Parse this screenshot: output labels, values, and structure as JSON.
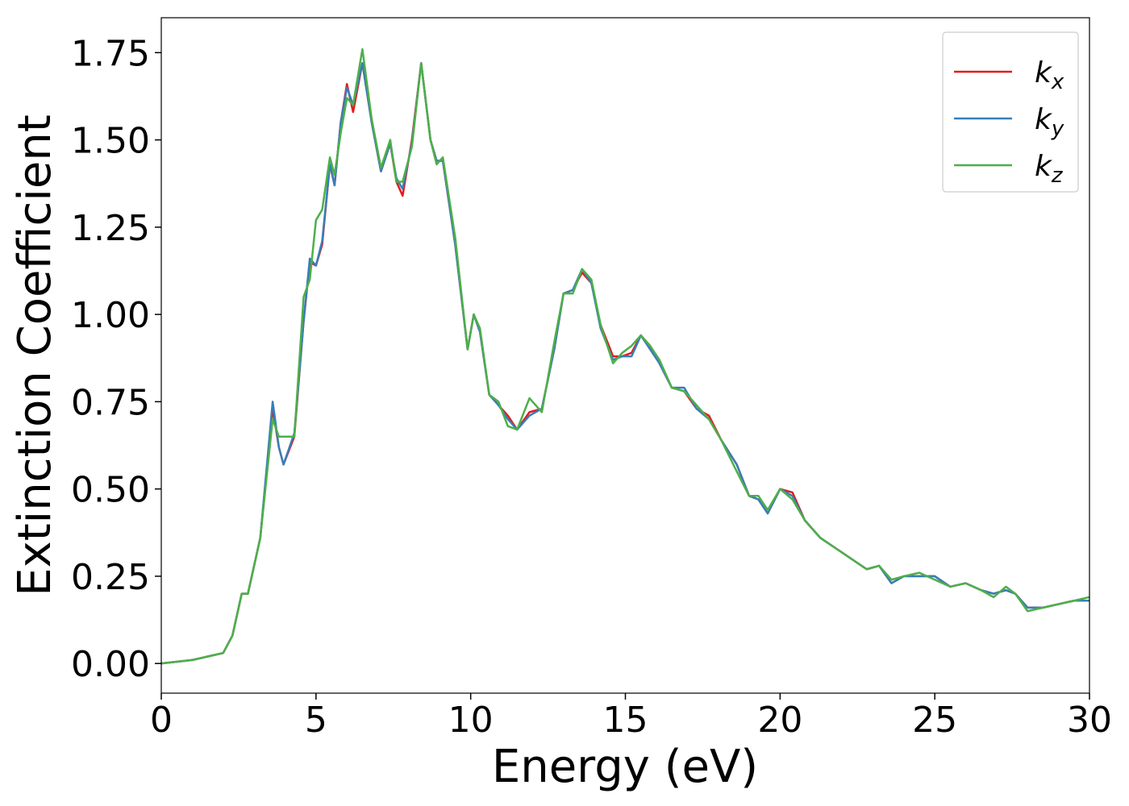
{
  "chart_data": {
    "type": "line",
    "xlabel": "Energy (eV)",
    "ylabel": "Extinction Coefficient",
    "xlim": [
      0,
      30
    ],
    "ylim": [
      -0.085,
      1.85
    ],
    "xticks": [
      0,
      5,
      10,
      15,
      20,
      25,
      30
    ],
    "yticks": [
      {
        "value": 0,
        "label": "0.00"
      },
      {
        "value": 0.25,
        "label": "0.25"
      },
      {
        "value": 0.5,
        "label": "0.50"
      },
      {
        "value": 0.75,
        "label": "0.75"
      },
      {
        "value": 1,
        "label": "1.00"
      },
      {
        "value": 1.25,
        "label": "1.25"
      },
      {
        "value": 1.5,
        "label": "1.50"
      },
      {
        "value": 1.75,
        "label": "1.75"
      }
    ],
    "legend": "upper right",
    "x": [
      0,
      1,
      2,
      2.3,
      2.6,
      2.8,
      3.2,
      3.6,
      3.8,
      3.95,
      4.3,
      4.6,
      4.8,
      5.0,
      5.2,
      5.45,
      5.6,
      5.8,
      6.0,
      6.2,
      6.5,
      6.8,
      7.1,
      7.4,
      7.6,
      7.8,
      8.1,
      8.4,
      8.7,
      8.9,
      9.1,
      9.5,
      9.9,
      10.1,
      10.3,
      10.6,
      10.9,
      11.2,
      11.5,
      11.9,
      12.3,
      12.7,
      13.0,
      13.3,
      13.6,
      13.9,
      14.2,
      14.6,
      14.9,
      15.2,
      15.5,
      15.8,
      16.1,
      16.5,
      16.9,
      17.3,
      17.7,
      18.1,
      18.6,
      19.0,
      19.3,
      19.6,
      20.0,
      20.4,
      20.8,
      21.3,
      21.8,
      22.3,
      22.8,
      23.2,
      23.6,
      24.0,
      24.5,
      25.0,
      25.5,
      26.0,
      26.5,
      26.9,
      27.3,
      27.6,
      28.0,
      28.5,
      29.0,
      29.5,
      30
    ],
    "series": [
      {
        "name": "kx",
        "color": "#e41a1c",
        "values": [
          0,
          0.01,
          0.03,
          0.08,
          0.2,
          0.2,
          0.36,
          0.73,
          0.62,
          0.57,
          0.65,
          0.98,
          1.15,
          1.14,
          1.2,
          1.43,
          1.37,
          1.55,
          1.66,
          1.58,
          1.72,
          1.55,
          1.41,
          1.49,
          1.38,
          1.34,
          1.5,
          1.72,
          1.5,
          1.44,
          1.44,
          1.2,
          0.9,
          1.0,
          0.95,
          0.77,
          0.74,
          0.71,
          0.67,
          0.72,
          0.73,
          0.9,
          1.06,
          1.07,
          1.12,
          1.09,
          0.97,
          0.88,
          0.88,
          0.89,
          0.94,
          0.91,
          0.86,
          0.79,
          0.78,
          0.73,
          0.71,
          0.64,
          0.57,
          0.48,
          0.47,
          0.43,
          0.5,
          0.49,
          0.41,
          0.36,
          0.33,
          0.3,
          0.27,
          0.28,
          0.23,
          0.25,
          0.25,
          0.25,
          0.22,
          0.23,
          0.21,
          0.2,
          0.21,
          0.2,
          0.16,
          0.16,
          0.17,
          0.18,
          0.18
        ]
      },
      {
        "name": "ky",
        "color": "#377eb8",
        "values": [
          0,
          0.01,
          0.03,
          0.08,
          0.2,
          0.2,
          0.36,
          0.75,
          0.62,
          0.57,
          0.66,
          0.98,
          1.16,
          1.14,
          1.21,
          1.43,
          1.37,
          1.55,
          1.65,
          1.6,
          1.72,
          1.55,
          1.41,
          1.49,
          1.39,
          1.36,
          1.49,
          1.72,
          1.5,
          1.44,
          1.44,
          1.2,
          0.9,
          1.0,
          0.95,
          0.77,
          0.74,
          0.7,
          0.67,
          0.71,
          0.73,
          0.9,
          1.06,
          1.07,
          1.13,
          1.09,
          0.96,
          0.87,
          0.88,
          0.88,
          0.94,
          0.9,
          0.86,
          0.79,
          0.79,
          0.73,
          0.7,
          0.64,
          0.57,
          0.48,
          0.47,
          0.43,
          0.5,
          0.48,
          0.41,
          0.36,
          0.33,
          0.3,
          0.27,
          0.28,
          0.23,
          0.25,
          0.25,
          0.25,
          0.22,
          0.23,
          0.21,
          0.2,
          0.21,
          0.2,
          0.16,
          0.16,
          0.17,
          0.18,
          0.18
        ]
      },
      {
        "name": "kz",
        "color": "#4daf4a",
        "values": [
          0,
          0.01,
          0.03,
          0.08,
          0.2,
          0.2,
          0.36,
          0.7,
          0.65,
          0.65,
          0.65,
          1.05,
          1.1,
          1.27,
          1.3,
          1.45,
          1.4,
          1.52,
          1.62,
          1.6,
          1.76,
          1.56,
          1.42,
          1.5,
          1.38,
          1.38,
          1.48,
          1.72,
          1.5,
          1.43,
          1.45,
          1.22,
          0.9,
          1.0,
          0.96,
          0.77,
          0.75,
          0.68,
          0.67,
          0.76,
          0.72,
          0.92,
          1.06,
          1.06,
          1.13,
          1.1,
          0.97,
          0.86,
          0.89,
          0.91,
          0.94,
          0.91,
          0.87,
          0.79,
          0.78,
          0.74,
          0.7,
          0.64,
          0.55,
          0.48,
          0.48,
          0.44,
          0.5,
          0.47,
          0.41,
          0.36,
          0.33,
          0.3,
          0.27,
          0.28,
          0.24,
          0.25,
          0.26,
          0.24,
          0.22,
          0.23,
          0.21,
          0.19,
          0.22,
          0.2,
          0.15,
          0.16,
          0.17,
          0.18,
          0.19
        ]
      }
    ]
  }
}
